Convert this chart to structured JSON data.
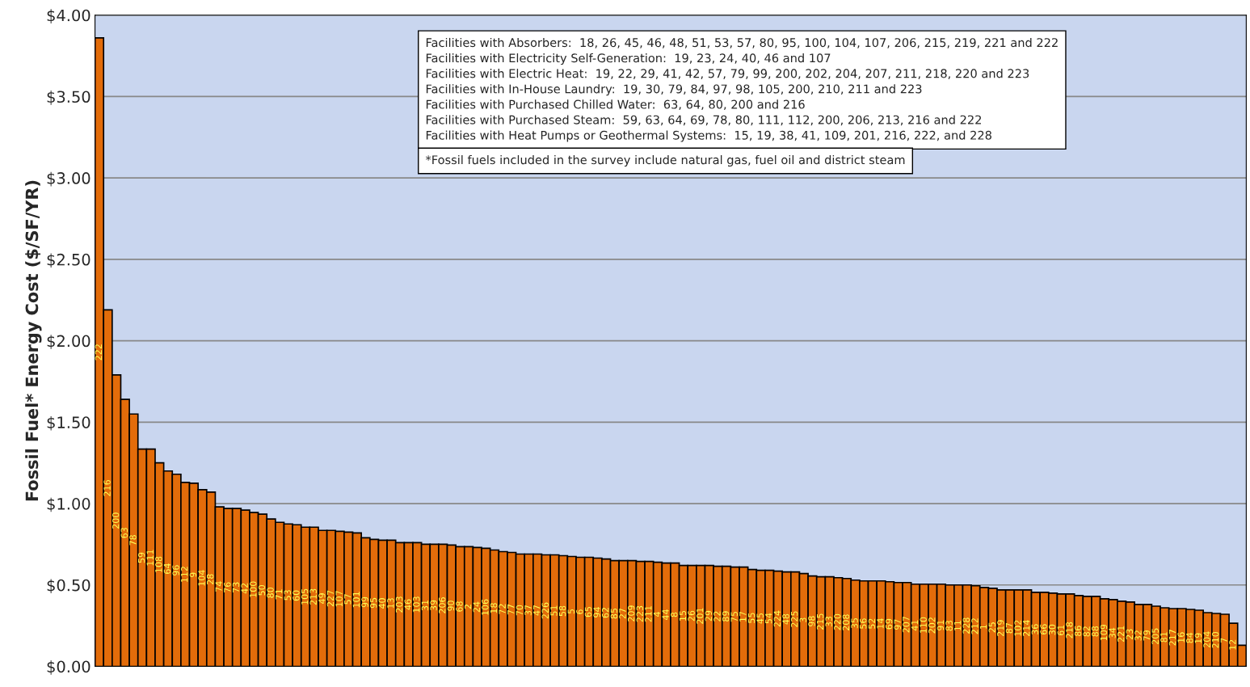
{
  "chart_data": {
    "type": "bar",
    "ylabel": "Fossil Fuel* Energy Cost ($/SF/YR)",
    "categories": [
      "222",
      "216",
      "200",
      "63",
      "78",
      "59",
      "111",
      "108",
      "64",
      "96",
      "112",
      "9",
      "104",
      "28",
      "74",
      "76",
      "73",
      "42",
      "100",
      "50",
      "80",
      "71",
      "53",
      "60",
      "105",
      "213",
      "49",
      "227",
      "107",
      "57",
      "101",
      "99",
      "95",
      "40",
      "13",
      "203",
      "46",
      "103",
      "31",
      "39",
      "206",
      "90",
      "68",
      "2",
      "24",
      "106",
      "18",
      "72",
      "77",
      "70",
      "37",
      "47",
      "226",
      "51",
      "58",
      "5",
      "6",
      "65",
      "94",
      "62",
      "85",
      "27",
      "209",
      "223",
      "211",
      "4",
      "44",
      "8",
      "15",
      "26",
      "201",
      "29",
      "22",
      "89",
      "75",
      "17",
      "55",
      "45",
      "54",
      "224",
      "48",
      "225",
      "3",
      "98",
      "215",
      "33",
      "220",
      "208",
      "35",
      "56",
      "52",
      "14",
      "69",
      "97",
      "207",
      "41",
      "110",
      "202",
      "91",
      "83",
      "11",
      "228",
      "212",
      "1",
      "25",
      "219",
      "87",
      "102",
      "214",
      "36",
      "66",
      "30",
      "61",
      "218",
      "86",
      "82",
      "88",
      "109",
      "34",
      "221",
      "23",
      "32",
      "79",
      "205",
      "81",
      "217",
      "16",
      "84",
      "19",
      "204",
      "210",
      "7",
      "12",
      null
    ],
    "values": [
      3.86,
      2.19,
      1.79,
      1.64,
      1.55,
      1.335,
      1.335,
      1.25,
      1.2,
      1.18,
      1.13,
      1.125,
      1.085,
      1.07,
      0.98,
      0.97,
      0.97,
      0.96,
      0.945,
      0.935,
      0.905,
      0.885,
      0.875,
      0.87,
      0.855,
      0.855,
      0.835,
      0.835,
      0.83,
      0.825,
      0.82,
      0.79,
      0.78,
      0.775,
      0.775,
      0.76,
      0.76,
      0.76,
      0.75,
      0.75,
      0.75,
      0.745,
      0.735,
      0.735,
      0.73,
      0.725,
      0.715,
      0.705,
      0.7,
      0.69,
      0.69,
      0.69,
      0.685,
      0.685,
      0.68,
      0.675,
      0.67,
      0.67,
      0.665,
      0.66,
      0.65,
      0.65,
      0.65,
      0.645,
      0.645,
      0.64,
      0.635,
      0.635,
      0.62,
      0.62,
      0.62,
      0.62,
      0.615,
      0.615,
      0.61,
      0.61,
      0.595,
      0.59,
      0.59,
      0.585,
      0.58,
      0.58,
      0.57,
      0.555,
      0.55,
      0.55,
      0.545,
      0.54,
      0.53,
      0.525,
      0.525,
      0.525,
      0.52,
      0.515,
      0.515,
      0.505,
      0.505,
      0.505,
      0.505,
      0.5,
      0.5,
      0.5,
      0.495,
      0.485,
      0.48,
      0.47,
      0.47,
      0.47,
      0.47,
      0.455,
      0.455,
      0.45,
      0.445,
      0.445,
      0.435,
      0.43,
      0.43,
      0.415,
      0.41,
      0.4,
      0.395,
      0.38,
      0.38,
      0.37,
      0.36,
      0.355,
      0.355,
      0.35,
      0.345,
      0.33,
      0.325,
      0.32,
      0.265,
      0.13
    ],
    "color": "#e36c0a",
    "ylim": [
      0,
      4
    ],
    "yticks": [
      {
        "value": 0,
        "label": "$0.00"
      },
      {
        "value": 0.5,
        "label": "$0.50"
      },
      {
        "value": 1,
        "label": "$1.00"
      },
      {
        "value": 1.5,
        "label": "$1.50"
      },
      {
        "value": 2,
        "label": "$2.00"
      },
      {
        "value": 2.5,
        "label": "$2.50"
      },
      {
        "value": 3,
        "label": "$3.00"
      },
      {
        "value": 3.5,
        "label": "$3.50"
      },
      {
        "value": 4,
        "label": "$4.00"
      }
    ],
    "grid": "y",
    "tick_labels": "y",
    "annotations": [
      "Facilities with Absorbers:  18, 26, 45, 46, 48, 51, 53, 57, 80, 95, 100, 104, 107, 206, 215, 219, 221 and 222",
      "Facilities with Electricity Self-Generation:  19, 23, 24, 40, 46 and 107",
      "Facilities with Electric Heat:  19, 22, 29, 41, 42, 57, 79, 99, 200, 202, 204, 207, 211, 218, 220 and 223",
      "Facilities with In-House Laundry:  19, 30, 79, 84, 97, 98, 105, 200, 210, 211 and 223",
      "Facilities with Purchased Chilled Water:  63, 64, 80, 200 and 216",
      "Facilities with Purchased Steam:  59, 63, 64, 69, 78, 80, 111, 112, 200, 206, 213, 216 and 222",
      "Facilities with Heat Pumps or Geothermal Systems:  15, 19, 38, 41, 109, 201, 216, 222, and 228",
      "*Fossil fuels included in the survey include natural gas, fuel oil and district steam"
    ]
  }
}
